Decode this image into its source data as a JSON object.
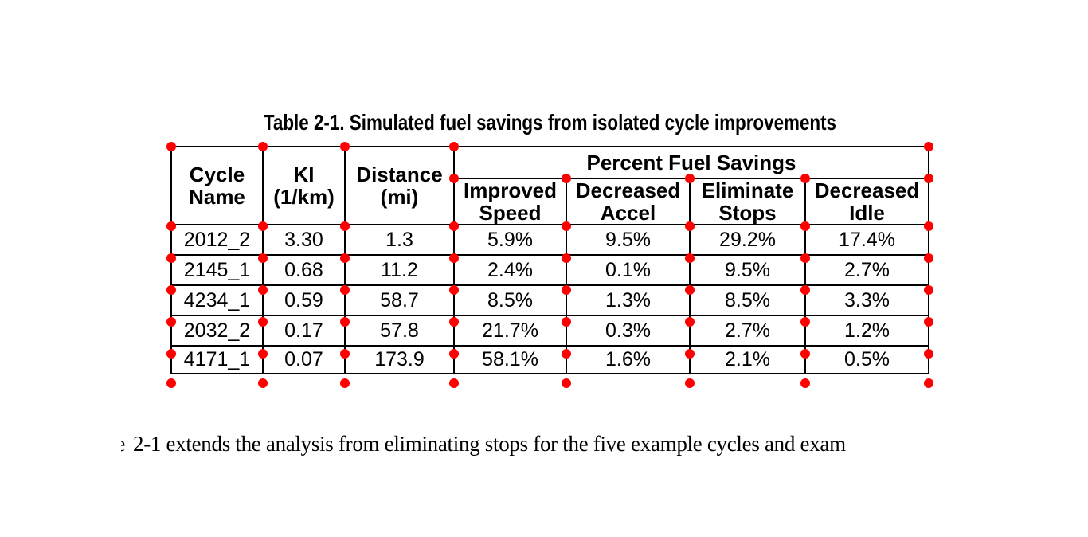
{
  "caption": "Table 2-1. Simulated fuel savings from isolated cycle improvements",
  "table": {
    "header": {
      "cycle_name": "Cycle\nName",
      "ki": "KI\n(1/km)",
      "distance": "Distance\n(mi)",
      "fuel_savings_group": "Percent Fuel Savings",
      "sub": [
        "Improved\nSpeed",
        "Decreased\nAccel",
        "Eliminate\nStops",
        "Decreased\nIdle"
      ]
    },
    "rows": [
      [
        "2012_2",
        "3.30",
        "1.3",
        "5.9%",
        "9.5%",
        "29.2%",
        "17.4%"
      ],
      [
        "2145_1",
        "0.68",
        "11.2",
        "2.4%",
        "0.1%",
        "9.5%",
        "2.7%"
      ],
      [
        "4234_1",
        "0.59",
        "58.7",
        "8.5%",
        "1.3%",
        "8.5%",
        "3.3%"
      ],
      [
        "2032_2",
        "0.17",
        "57.8",
        "21.7%",
        "0.3%",
        "2.7%",
        "1.2%"
      ],
      [
        "4171_1",
        "0.07",
        "173.9",
        "58.1%",
        "1.6%",
        "2.1%",
        "0.5%"
      ]
    ]
  },
  "body": {
    "leading_fragment": "e",
    "text": "2-1 extends the analysis from eliminating stops for the five example cycles and exam"
  },
  "colors": {
    "dot": "#ff0000",
    "border": "#000000",
    "text": "#000000",
    "background": "#ffffff"
  }
}
